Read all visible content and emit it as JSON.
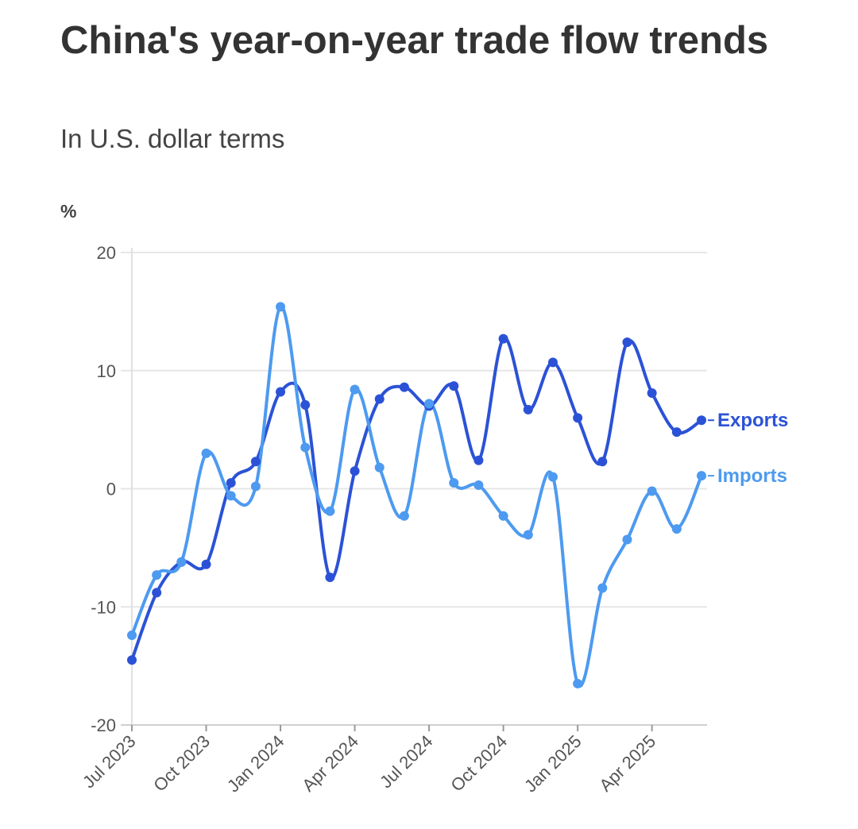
{
  "chart_data": {
    "type": "line",
    "title": "China's year-on-year trade flow trends",
    "subtitle": "In U.S. dollar terms",
    "ylabel": "%",
    "xlabel": "",
    "ylim": [
      -20,
      20
    ],
    "yticks": [
      20,
      10,
      0,
      -10,
      -20
    ],
    "grid": true,
    "x": [
      "2023-07",
      "2023-08",
      "2023-09",
      "2023-10",
      "2023-11",
      "2023-12",
      "2024-01",
      "2024-02",
      "2024-03",
      "2024-04",
      "2024-05",
      "2024-06",
      "2024-07",
      "2024-08",
      "2024-09",
      "2024-10",
      "2024-11",
      "2024-12",
      "2025-01",
      "2025-02",
      "2025-03",
      "2025-04",
      "2025-05",
      "2025-06"
    ],
    "xtick_labels": [
      "Jul 2023",
      "Oct 2023",
      "Jan 2024",
      "Apr 2024",
      "Jul 2024",
      "Oct 2024",
      "Jan 2025",
      "Apr 2025"
    ],
    "series": [
      {
        "name": "Exports",
        "color": "#2b52d6",
        "values": [
          -14.5,
          -8.8,
          -6.2,
          -6.4,
          0.5,
          2.3,
          8.2,
          7.1,
          -7.5,
          1.5,
          7.6,
          8.6,
          7.0,
          8.7,
          2.4,
          12.7,
          6.7,
          10.7,
          6.0,
          2.3,
          12.4,
          8.1,
          4.8,
          5.8
        ]
      },
      {
        "name": "Imports",
        "color": "#4d9af0",
        "values": [
          -12.4,
          -7.3,
          -6.2,
          3.0,
          -0.6,
          0.2,
          15.4,
          3.5,
          -1.9,
          8.4,
          1.8,
          -2.3,
          7.2,
          0.5,
          0.3,
          -2.3,
          -3.9,
          1.0,
          -16.5,
          -8.4,
          -4.3,
          -0.2,
          -3.4,
          1.1
        ]
      }
    ]
  }
}
